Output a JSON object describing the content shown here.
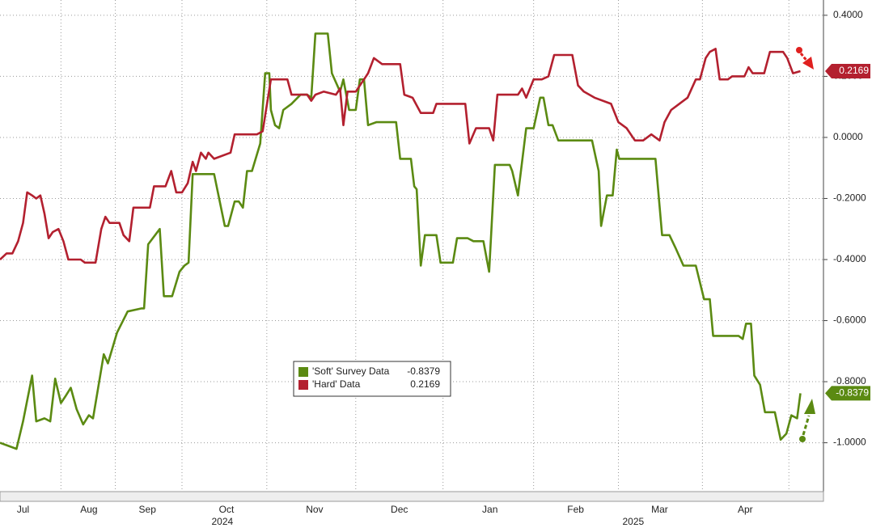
{
  "chart_data": {
    "type": "line",
    "xlim": [
      0,
      10
    ],
    "ylim": [
      -1.16,
      0.45
    ],
    "yticks": [
      {
        "value": 0.4,
        "label": "0.4000"
      },
      {
        "value": 0.2,
        "label": "0.2000"
      },
      {
        "value": 0,
        "label": "0.0000"
      },
      {
        "value": -0.2,
        "label": "-0.2000"
      },
      {
        "value": -0.4,
        "label": "-0.4000"
      },
      {
        "value": -0.6,
        "label": "-0.6000"
      },
      {
        "value": -0.8,
        "label": "-0.8000"
      },
      {
        "value": -1.0,
        "label": "-1.0000"
      }
    ],
    "xticks": [
      {
        "value": 0.28,
        "label": "Jul"
      },
      {
        "value": 1.08,
        "label": "Aug"
      },
      {
        "value": 1.79,
        "label": "Sep"
      },
      {
        "value": 2.75,
        "label": "Oct"
      },
      {
        "value": 3.82,
        "label": "Nov"
      },
      {
        "value": 4.85,
        "label": "Dec"
      },
      {
        "value": 5.95,
        "label": "Jan"
      },
      {
        "value": 6.99,
        "label": "Feb"
      },
      {
        "value": 8.01,
        "label": "Mar"
      },
      {
        "value": 9.05,
        "label": "Apr"
      }
    ],
    "year_labels": [
      {
        "value": 2.7,
        "label": "2024"
      },
      {
        "value": 7.69,
        "label": "2025"
      }
    ],
    "xgrid": [
      0.74,
      1.4,
      2.21,
      3.24,
      4.32,
      5.38,
      6.48,
      7.51,
      8.53,
      9.58
    ],
    "grid": true,
    "series": [
      {
        "name": "'Soft' Survey Data",
        "color": "#5b8a12",
        "x": [
          0,
          0.2,
          0.28,
          0.39,
          0.44,
          0.54,
          0.61,
          0.67,
          0.74,
          0.79,
          0.86,
          0.93,
          1.01,
          1.08,
          1.13,
          1.26,
          1.31,
          1.42,
          1.55,
          1.72,
          1.75,
          1.8,
          1.94,
          1.99,
          2.09,
          2.18,
          2.24,
          2.29,
          2.34,
          2.6,
          2.73,
          2.77,
          2.85,
          2.9,
          2.95,
          3.0,
          3.06,
          3.16,
          3.22,
          3.27,
          3.29,
          3.34,
          3.39,
          3.44,
          3.54,
          3.65,
          3.73,
          3.78,
          3.83,
          3.98,
          4.03,
          4.13,
          4.17,
          4.24,
          4.32,
          4.37,
          4.42,
          4.47,
          4.57,
          4.81,
          4.86,
          4.99,
          5.03,
          5.06,
          5.11,
          5.16,
          5.3,
          5.35,
          5.5,
          5.55,
          5.6,
          5.68,
          5.75,
          5.8,
          5.87,
          5.94,
          6.01,
          6.19,
          6.22,
          6.29,
          6.39,
          6.48,
          6.56,
          6.6,
          6.66,
          6.71,
          6.78,
          7.02,
          7.09,
          7.19,
          7.27,
          7.3,
          7.37,
          7.44,
          7.49,
          7.52,
          7.66,
          7.96,
          8.04,
          8.13,
          8.2,
          8.3,
          8.4,
          8.45,
          8.55,
          8.62,
          8.66,
          8.97,
          9.02,
          9.06,
          9.12,
          9.16,
          9.23,
          9.29,
          9.41,
          9.48,
          9.55,
          9.61,
          9.68,
          9.72
        ],
        "values": [
          -1.0,
          -1.02,
          -0.93,
          -0.78,
          -0.93,
          -0.92,
          -0.93,
          -0.79,
          -0.87,
          -0.85,
          -0.82,
          -0.89,
          -0.94,
          -0.91,
          -0.92,
          -0.71,
          -0.74,
          -0.64,
          -0.57,
          -0.56,
          -0.56,
          -0.35,
          -0.3,
          -0.52,
          -0.52,
          -0.44,
          -0.42,
          -0.41,
          -0.12,
          -0.12,
          -0.29,
          -0.29,
          -0.21,
          -0.21,
          -0.23,
          -0.11,
          -0.11,
          -0.02,
          0.21,
          0.21,
          0.09,
          0.04,
          0.03,
          0.09,
          0.11,
          0.14,
          0.14,
          0.13,
          0.34,
          0.34,
          0.21,
          0.15,
          0.19,
          0.09,
          0.09,
          0.19,
          0.19,
          0.04,
          0.05,
          0.05,
          -0.07,
          -0.07,
          -0.16,
          -0.17,
          -0.42,
          -0.32,
          -0.32,
          -0.41,
          -0.41,
          -0.33,
          -0.33,
          -0.33,
          -0.34,
          -0.34,
          -0.34,
          -0.44,
          -0.09,
          -0.09,
          -0.11,
          -0.19,
          0.03,
          0.03,
          0.13,
          0.13,
          0.04,
          0.04,
          -0.01,
          -0.01,
          -0.01,
          -0.01,
          -0.11,
          -0.29,
          -0.19,
          -0.19,
          -0.04,
          -0.07,
          -0.07,
          -0.07,
          -0.32,
          -0.32,
          -0.36,
          -0.42,
          -0.42,
          -0.42,
          -0.53,
          -0.53,
          -0.65,
          -0.65,
          -0.66,
          -0.61,
          -0.61,
          -0.78,
          -0.81,
          -0.9,
          -0.9,
          -0.99,
          -0.97,
          -0.91,
          -0.92,
          -0.8379
        ]
      },
      {
        "name": "'Hard' Data",
        "color": "#b3202f",
        "x": [
          0,
          0.08,
          0.15,
          0.22,
          0.28,
          0.33,
          0.39,
          0.44,
          0.49,
          0.54,
          0.59,
          0.64,
          0.71,
          0.77,
          0.83,
          0.9,
          0.98,
          1.03,
          1.16,
          1.23,
          1.28,
          1.33,
          1.38,
          1.45,
          1.5,
          1.57,
          1.62,
          1.67,
          1.82,
          1.87,
          2.01,
          2.08,
          2.14,
          2.21,
          2.28,
          2.34,
          2.38,
          2.44,
          2.5,
          2.53,
          2.6,
          2.8,
          2.85,
          2.95,
          3.05,
          3.12,
          3.19,
          3.29,
          3.39,
          3.49,
          3.54,
          3.73,
          3.78,
          3.83,
          3.93,
          4.08,
          4.13,
          4.17,
          4.22,
          4.32,
          4.42,
          4.47,
          4.54,
          4.64,
          4.86,
          4.91,
          5.01,
          5.11,
          5.26,
          5.3,
          5.5,
          5.58,
          5.65,
          5.7,
          5.78,
          5.94,
          5.99,
          6.04,
          6.29,
          6.34,
          6.39,
          6.48,
          6.58,
          6.66,
          6.73,
          6.95,
          7.02,
          7.09,
          7.22,
          7.42,
          7.51,
          7.61,
          7.71,
          7.81,
          7.91,
          8.01,
          8.07,
          8.15,
          8.25,
          8.35,
          8.45,
          8.5,
          8.57,
          8.62,
          8.69,
          8.74,
          8.84,
          8.89,
          9.04,
          9.09,
          9.14,
          9.28,
          9.35,
          9.51,
          9.56,
          9.63,
          9.72
        ],
        "values": [
          -0.4,
          -0.38,
          -0.38,
          -0.34,
          -0.28,
          -0.18,
          -0.19,
          -0.2,
          -0.19,
          -0.25,
          -0.33,
          -0.31,
          -0.3,
          -0.34,
          -0.4,
          -0.4,
          -0.4,
          -0.41,
          -0.41,
          -0.3,
          -0.26,
          -0.28,
          -0.28,
          -0.28,
          -0.32,
          -0.34,
          -0.23,
          -0.23,
          -0.23,
          -0.16,
          -0.16,
          -0.11,
          -0.18,
          -0.18,
          -0.15,
          -0.08,
          -0.11,
          -0.05,
          -0.07,
          -0.05,
          -0.07,
          -0.05,
          0.01,
          0.01,
          0.01,
          0.01,
          0.02,
          0.19,
          0.19,
          0.19,
          0.14,
          0.14,
          0.12,
          0.14,
          0.15,
          0.14,
          0.16,
          0.04,
          0.15,
          0.15,
          0.19,
          0.21,
          0.26,
          0.24,
          0.24,
          0.14,
          0.13,
          0.08,
          0.08,
          0.11,
          0.11,
          0.11,
          0.11,
          -0.02,
          0.03,
          0.03,
          -0.01,
          0.14,
          0.14,
          0.16,
          0.13,
          0.19,
          0.19,
          0.2,
          0.27,
          0.27,
          0.17,
          0.15,
          0.13,
          0.11,
          0.05,
          0.03,
          -0.01,
          -0.01,
          0.01,
          -0.01,
          0.05,
          0.09,
          0.11,
          0.13,
          0.19,
          0.19,
          0.26,
          0.28,
          0.29,
          0.19,
          0.19,
          0.2,
          0.2,
          0.23,
          0.21,
          0.21,
          0.28,
          0.28,
          0.26,
          0.21,
          0.2169
        ]
      }
    ]
  }
}
